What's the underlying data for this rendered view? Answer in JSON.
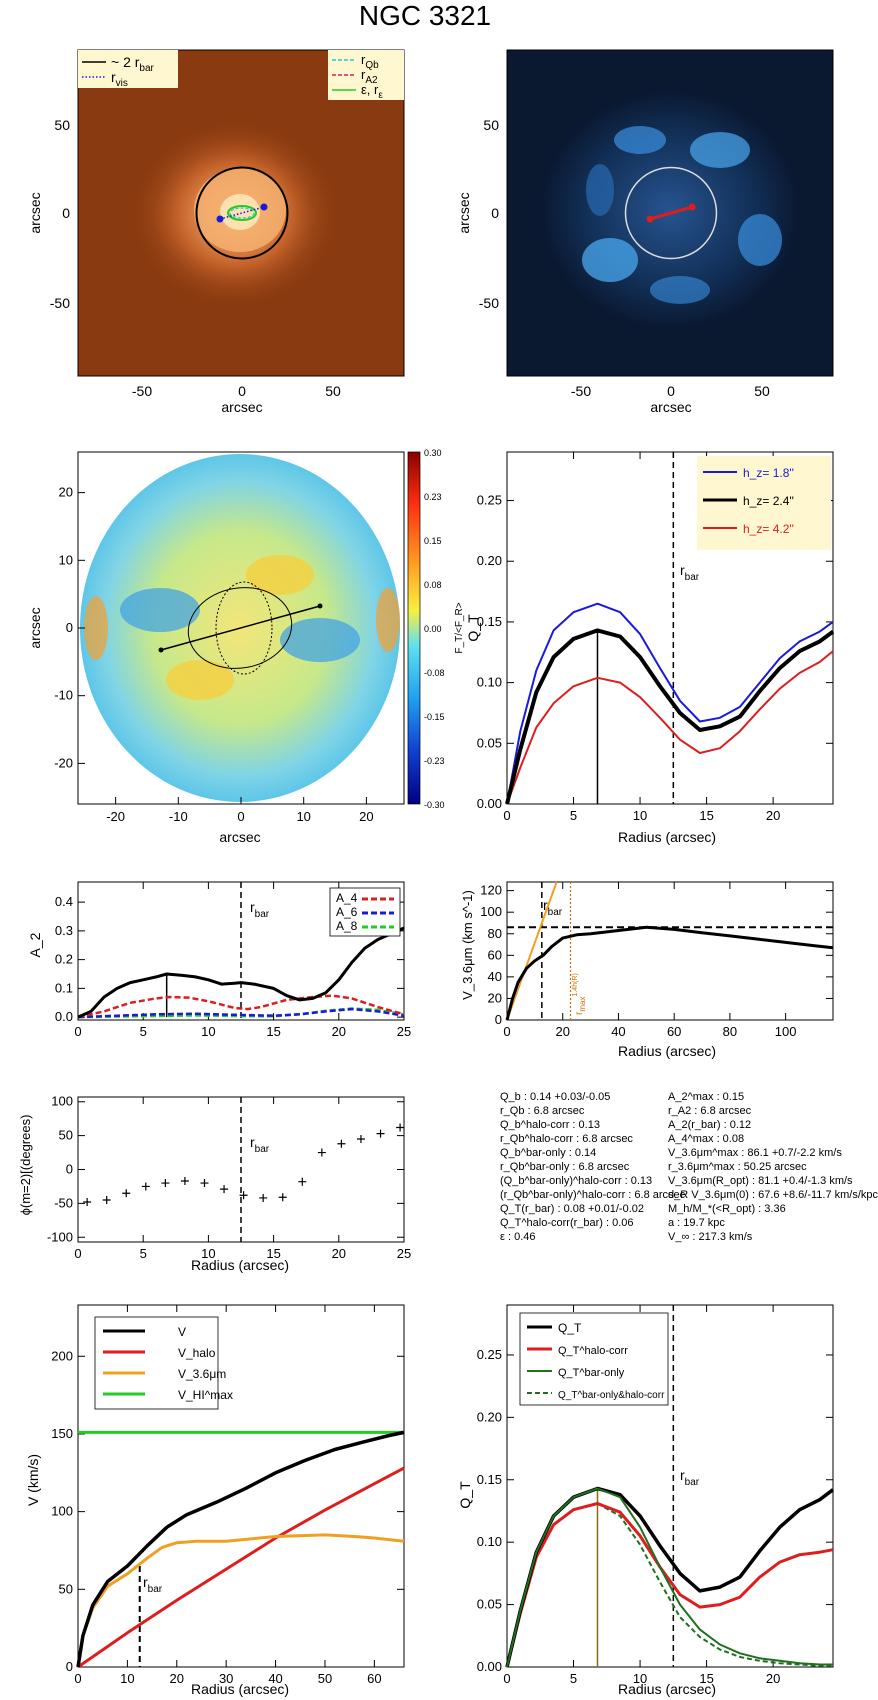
{
  "title": "NGC 3321",
  "colors": {
    "black": "#000000",
    "blue": "#1a1adc",
    "red": "#dc1e1e",
    "green": "#22cc22",
    "orange": "#f0a020",
    "darkgreen": "#1f6f1f",
    "cyan": "#22cccc",
    "magenta": "#cc2266",
    "img_bg": "#8a3a10",
    "img2_bg": "#0a1830"
  },
  "chart_data": [
    {
      "id": "image-panel",
      "type": "image",
      "xlabel": "arcsec",
      "ylabel": "arcsec",
      "xlim": [
        -90,
        90
      ],
      "ylim": [
        -90,
        90
      ],
      "xticks": [
        "-50",
        "0",
        "50"
      ],
      "yticks": [
        "50",
        "0",
        "-50"
      ],
      "legend": [
        {
          "label": "~ 2 r",
          "sub": "bar",
          "color": "#000000",
          "style": "solid"
        },
        {
          "label": "r",
          "sub": "vis",
          "color": "#1a1adc",
          "style": "dotted"
        },
        {
          "label": "r",
          "sub": "Qb",
          "color": "#22cccc",
          "style": "dashed"
        },
        {
          "label": "r",
          "sub": "A2",
          "color": "#cc2266",
          "style": "dashed"
        },
        {
          "label": "ε, r",
          "sub": "ε",
          "color": "#22cc22",
          "style": "solid"
        }
      ]
    },
    {
      "id": "residual-panel",
      "type": "image",
      "xlabel": "arcsec",
      "ylabel": "arcsec",
      "xlim": [
        -90,
        90
      ],
      "ylim": [
        -90,
        90
      ],
      "xticks": [
        "-50",
        "0",
        "50"
      ],
      "yticks": [
        "50",
        "0",
        "-50"
      ]
    },
    {
      "id": "force-map",
      "type": "heatmap",
      "xlabel": "arcsec",
      "ylabel": "arcsec",
      "xlim": [
        -26,
        26
      ],
      "ylim": [
        -26,
        26
      ],
      "xticks": [
        "-20",
        "-10",
        "0",
        "10",
        "20"
      ],
      "yticks": [
        "20",
        "10",
        "0",
        "-10",
        "-20"
      ],
      "colorbar_label": "F_T/<F_R>",
      "colorbar_ticks": [
        "0.30",
        "0.23",
        "0.15",
        "0.08",
        "0.00",
        "-0.08",
        "-0.15",
        "-0.23",
        "-0.30"
      ]
    },
    {
      "id": "qt-profiles",
      "type": "line",
      "xlabel": "Radius (arcsec)",
      "ylabel": "Q_T",
      "xlim": [
        0,
        24.5
      ],
      "ylim": [
        0,
        0.29
      ],
      "xticks": [
        0,
        5,
        10,
        15,
        20
      ],
      "yticks": [
        "0.00",
        "0.05",
        "0.10",
        "0.15",
        "0.20",
        "0.25"
      ],
      "rbar": 12.5,
      "rbar_label": "r",
      "rbar_sub": "bar",
      "qb_radius": 6.8,
      "series": [
        {
          "name": "h_z= 1.8''",
          "color": "#1a1adc",
          "x": [
            0,
            1,
            2.2,
            3.5,
            5,
            6.8,
            8.5,
            10,
            11.5,
            13,
            14.5,
            16,
            17.5,
            19,
            20.5,
            22,
            23.5,
            24.5
          ],
          "y": [
            0,
            0.06,
            0.11,
            0.143,
            0.158,
            0.165,
            0.158,
            0.14,
            0.112,
            0.085,
            0.068,
            0.071,
            0.08,
            0.1,
            0.12,
            0.134,
            0.142,
            0.15
          ]
        },
        {
          "name": "h_z= 2.4''",
          "color": "#000000",
          "x": [
            0,
            1,
            2.2,
            3.5,
            5,
            6.8,
            8.5,
            10,
            11.5,
            13,
            14.5,
            16,
            17.5,
            19,
            20.5,
            22,
            23.5,
            24.5
          ],
          "y": [
            0,
            0.045,
            0.092,
            0.121,
            0.136,
            0.143,
            0.138,
            0.121,
            0.097,
            0.075,
            0.061,
            0.064,
            0.072,
            0.093,
            0.112,
            0.126,
            0.134,
            0.142
          ]
        },
        {
          "name": "h_z= 4.2''",
          "color": "#dc1e1e",
          "x": [
            0,
            1,
            2.2,
            3.5,
            5,
            6.8,
            8.5,
            10,
            11.5,
            13,
            14.5,
            16,
            17.5,
            19,
            20.5,
            22,
            23.5,
            24.5
          ],
          "y": [
            0,
            0.03,
            0.063,
            0.083,
            0.097,
            0.104,
            0.1,
            0.088,
            0.071,
            0.053,
            0.042,
            0.046,
            0.06,
            0.078,
            0.095,
            0.108,
            0.117,
            0.126
          ]
        }
      ]
    },
    {
      "id": "fourier-amplitudes",
      "type": "line",
      "xlabel": "",
      "ylabel": "A_2",
      "xlim": [
        0,
        25
      ],
      "ylim": [
        -0.01,
        0.47
      ],
      "xticks": [
        0,
        5,
        10,
        15,
        20,
        25
      ],
      "yticks": [
        "0.0",
        "0.1",
        "0.2",
        "0.3",
        "0.4"
      ],
      "rbar": 12.5,
      "rbar_label": "r",
      "rbar_sub": "bar",
      "a2max_radius": 6.8,
      "a2max_value": 0.15,
      "series": [
        {
          "name": "A_2",
          "color": "#000000",
          "style": "solid",
          "in_legend": false,
          "x": [
            0,
            1,
            2,
            3,
            4,
            5,
            6,
            6.8,
            8,
            9,
            10,
            11,
            12,
            12.5,
            13.5,
            15,
            16,
            17,
            18,
            19,
            20,
            21,
            22,
            23,
            24,
            25
          ],
          "y": [
            0,
            0.02,
            0.07,
            0.1,
            0.12,
            0.13,
            0.14,
            0.15,
            0.145,
            0.14,
            0.13,
            0.115,
            0.118,
            0.12,
            0.115,
            0.1,
            0.075,
            0.06,
            0.065,
            0.085,
            0.13,
            0.19,
            0.24,
            0.27,
            0.29,
            0.31
          ]
        },
        {
          "name": "A_4",
          "color": "#dc1e1e",
          "style": "dashed",
          "in_legend": true,
          "x": [
            0,
            2,
            4,
            6,
            7,
            8.5,
            10,
            12,
            13,
            14,
            16,
            18,
            19.5,
            21,
            23,
            25
          ],
          "y": [
            0,
            0.02,
            0.05,
            0.065,
            0.07,
            0.068,
            0.055,
            0.032,
            0.028,
            0.035,
            0.06,
            0.07,
            0.075,
            0.065,
            0.035,
            0.01
          ]
        },
        {
          "name": "A_6",
          "color": "#1a1adc",
          "style": "dashed",
          "in_legend": true,
          "x": [
            0,
            3,
            6,
            9,
            12,
            15,
            17,
            19,
            21,
            23,
            25
          ],
          "y": [
            0,
            0.005,
            0.01,
            0.012,
            0.008,
            0.005,
            0.01,
            0.02,
            0.028,
            0.02,
            0.005
          ]
        },
        {
          "name": "A_8",
          "color": "#22cc22",
          "style": "dashed",
          "in_legend": true,
          "x": [
            0,
            3,
            6,
            9,
            12,
            15,
            17,
            19,
            21,
            23,
            25
          ],
          "y": [
            0,
            0.002,
            0.004,
            0.006,
            0.004,
            0.003,
            0.01,
            0.022,
            0.03,
            0.025,
            0.01
          ]
        }
      ]
    },
    {
      "id": "rotation-curve-36",
      "type": "line",
      "xlabel": "Radius (arcsec)",
      "ylabel": "V_3.6μm (km s^-1)",
      "xlim": [
        0,
        117
      ],
      "ylim": [
        0,
        128
      ],
      "xticks": [
        0,
        20,
        40,
        60,
        80,
        100
      ],
      "yticks": [
        0,
        20,
        40,
        60,
        80,
        100,
        120
      ],
      "rbar": 12.5,
      "rbar_label": "r",
      "rbar_sub": "bar",
      "rmax_radius": 22.8,
      "rmax_label": "r",
      "rmax_sub": "max",
      "rmax_sup": "1.4h(R)",
      "vflat": 86,
      "series": [
        {
          "name": "V_3.6μm",
          "color": "#000000",
          "x": [
            0,
            2,
            4,
            7,
            10,
            13,
            16,
            20,
            25,
            30,
            40,
            50,
            60,
            70,
            80,
            90,
            100,
            110,
            117
          ],
          "y": [
            0,
            20,
            35,
            48,
            55,
            60,
            68,
            76,
            79,
            80,
            83,
            86,
            84,
            81,
            78,
            75,
            72,
            69,
            67
          ]
        },
        {
          "name": "inner slope",
          "color": "#f0a020",
          "x": [
            0,
            17.8
          ],
          "y": [
            0,
            128
          ]
        }
      ]
    },
    {
      "id": "phase-profile",
      "type": "scatter",
      "xlabel": "Radius (arcsec)",
      "ylabel": "ϕ(m=2)[(degrees)",
      "xlim": [
        0,
        25
      ],
      "ylim": [
        -107,
        107
      ],
      "xticks": [
        0,
        5,
        10,
        15,
        20,
        25
      ],
      "yticks": [
        100,
        50,
        0,
        -50,
        -100
      ],
      "rbar": 12.5,
      "rbar_label": "r",
      "rbar_sub": "bar",
      "x": [
        0.7,
        2.2,
        3.7,
        5.2,
        6.7,
        8.2,
        9.7,
        11.2,
        12.7,
        14.2,
        15.7,
        17.2,
        18.7,
        20.2,
        21.7,
        23.2,
        24.7
      ],
      "y": [
        -48,
        -45,
        -35,
        -25,
        -20,
        -17,
        -20,
        -29,
        -38,
        -42,
        -41,
        -18,
        25,
        38,
        45,
        53,
        62
      ]
    },
    {
      "id": "velocity-decomposition",
      "type": "line",
      "xlabel": "Radius (arcsec)",
      "ylabel": "V (km/s)",
      "xlim": [
        0,
        66
      ],
      "ylim": [
        0,
        233
      ],
      "xticks": [
        0,
        10,
        20,
        30,
        40,
        50,
        60
      ],
      "yticks": [
        0,
        50,
        100,
        150,
        200
      ],
      "rbar": 12.5,
      "rbar_label": "r",
      "rbar_sub": "bar",
      "series": [
        {
          "name": "V",
          "color": "#000000",
          "x": [
            0,
            1,
            3,
            6,
            10,
            14,
            18,
            22,
            28,
            34,
            40,
            46,
            52,
            58,
            63,
            66
          ],
          "y": [
            0,
            20,
            40,
            55,
            65,
            78,
            90,
            98,
            106,
            115,
            125,
            133,
            140,
            145,
            149,
            151
          ]
        },
        {
          "name": "V_halo",
          "color": "#dc1e1e",
          "x": [
            0,
            10,
            20,
            30,
            40,
            50,
            60,
            66
          ],
          "y": [
            0,
            22,
            43,
            63,
            83,
            101,
            118,
            128
          ]
        },
        {
          "name": "V_3.6μm",
          "color": "#f0a020",
          "x": [
            0,
            1,
            3,
            6,
            10,
            14,
            17,
            20,
            24,
            30,
            40,
            50,
            56,
            60,
            66
          ],
          "y": [
            0,
            20,
            38,
            52,
            60,
            70,
            77,
            80,
            81,
            81,
            84,
            85,
            84,
            83,
            81
          ]
        },
        {
          "name": "V_HI^max",
          "color": "#22cc22",
          "x": [
            0,
            66
          ],
          "y": [
            151,
            151
          ]
        }
      ]
    },
    {
      "id": "qt-halo-corrected",
      "type": "line",
      "xlabel": "Radius (arcsec)",
      "ylabel": "Q_T",
      "xlim": [
        0,
        24.5
      ],
      "ylim": [
        0,
        0.29
      ],
      "xticks": [
        0,
        5,
        10,
        15,
        20
      ],
      "yticks": [
        "0.00",
        "0.05",
        "0.10",
        "0.15",
        "0.20",
        "0.25"
      ],
      "rbar": 12.5,
      "rbar_label": "r",
      "rbar_sub": "bar",
      "qb_radius": 6.8,
      "series": [
        {
          "name": "Q_T",
          "color": "#000000",
          "style": "solid",
          "x": [
            0,
            1,
            2.2,
            3.5,
            5,
            6.8,
            8.5,
            10,
            11.5,
            13,
            14.5,
            16,
            17.5,
            19,
            20.5,
            22,
            23.5,
            24.5
          ],
          "y": [
            0,
            0.045,
            0.092,
            0.121,
            0.136,
            0.143,
            0.138,
            0.121,
            0.097,
            0.075,
            0.061,
            0.064,
            0.072,
            0.093,
            0.112,
            0.126,
            0.134,
            0.142
          ]
        },
        {
          "name": "Q_T^halo-corr",
          "color": "#dc1e1e",
          "style": "solid",
          "x": [
            0,
            1,
            2.2,
            3.5,
            5,
            6.8,
            8.5,
            10,
            11.5,
            13,
            14.5,
            16,
            17.5,
            19,
            20.5,
            22,
            23.5,
            24.5
          ],
          "y": [
            0,
            0.043,
            0.088,
            0.114,
            0.126,
            0.131,
            0.124,
            0.105,
            0.08,
            0.058,
            0.048,
            0.05,
            0.056,
            0.072,
            0.084,
            0.09,
            0.092,
            0.094
          ]
        },
        {
          "name": "Q_T^bar-only",
          "color": "#1f6f1f",
          "style": "solid",
          "x": [
            0,
            1,
            2.2,
            3.5,
            5,
            6.8,
            8.5,
            10,
            11.5,
            13,
            14.5,
            16,
            17.5,
            19,
            20.5,
            22,
            23.5,
            24.5
          ],
          "y": [
            0,
            0.045,
            0.092,
            0.121,
            0.136,
            0.143,
            0.136,
            0.112,
            0.08,
            0.05,
            0.03,
            0.018,
            0.011,
            0.007,
            0.005,
            0.003,
            0.002,
            0.002
          ]
        },
        {
          "name": "Q_T^bar-only&halo-corr",
          "color": "#1f6f1f",
          "style": "dashed",
          "x": [
            0,
            1,
            2.2,
            3.5,
            5,
            6.8,
            8.5,
            10,
            11.5,
            13,
            14.5,
            16,
            17.5,
            19,
            20.5,
            22,
            23.5,
            24.5
          ],
          "y": [
            0,
            0.043,
            0.088,
            0.114,
            0.126,
            0.131,
            0.121,
            0.098,
            0.068,
            0.04,
            0.024,
            0.014,
            0.008,
            0.005,
            0.003,
            0.002,
            0.001,
            0.001
          ]
        }
      ]
    }
  ],
  "parameters": {
    "left": [
      "Q_b :  0.14 +0.03/-0.05",
      "r_Qb :  6.8  arcsec",
      "Q_b^halo-corr :  0.13",
      "r_Qb^halo-corr :  6.8 arcsec",
      "Q_b^bar-only :  0.14",
      "r_Qb^bar-only :  6.8 arcsec",
      "(Q_b^bar-only)^halo-corr :  0.13",
      "(r_Qb^bar-only)^halo-corr :  6.8 arcsec",
      "Q_T(r_bar) :  0.08 +0.01/-0.02",
      "Q_T^halo-corr(r_bar) :  0.06",
      "ε :  0.46"
    ],
    "right": [
      "A_2^max :  0.15",
      "r_A2 :  6.8 arcsec",
      "A_2(r_bar) :  0.12",
      "A_4^max :  0.08",
      "V_3.6μm^max :  86.1 +0.7/-2.2 km/s",
      "r_3.6μm^max :  50.25 arcsec",
      "V_3.6μm(R_opt) :  81.1 +0.4/-1.3 km/s",
      "d_R V_3.6μm(0) :  67.6 +8.6/-11.7 km/s/kpc",
      "M_h/M_*(<R_opt) :  3.36",
      "a :  19.7 kpc",
      "V_∞ :  217.3 km/s"
    ]
  }
}
